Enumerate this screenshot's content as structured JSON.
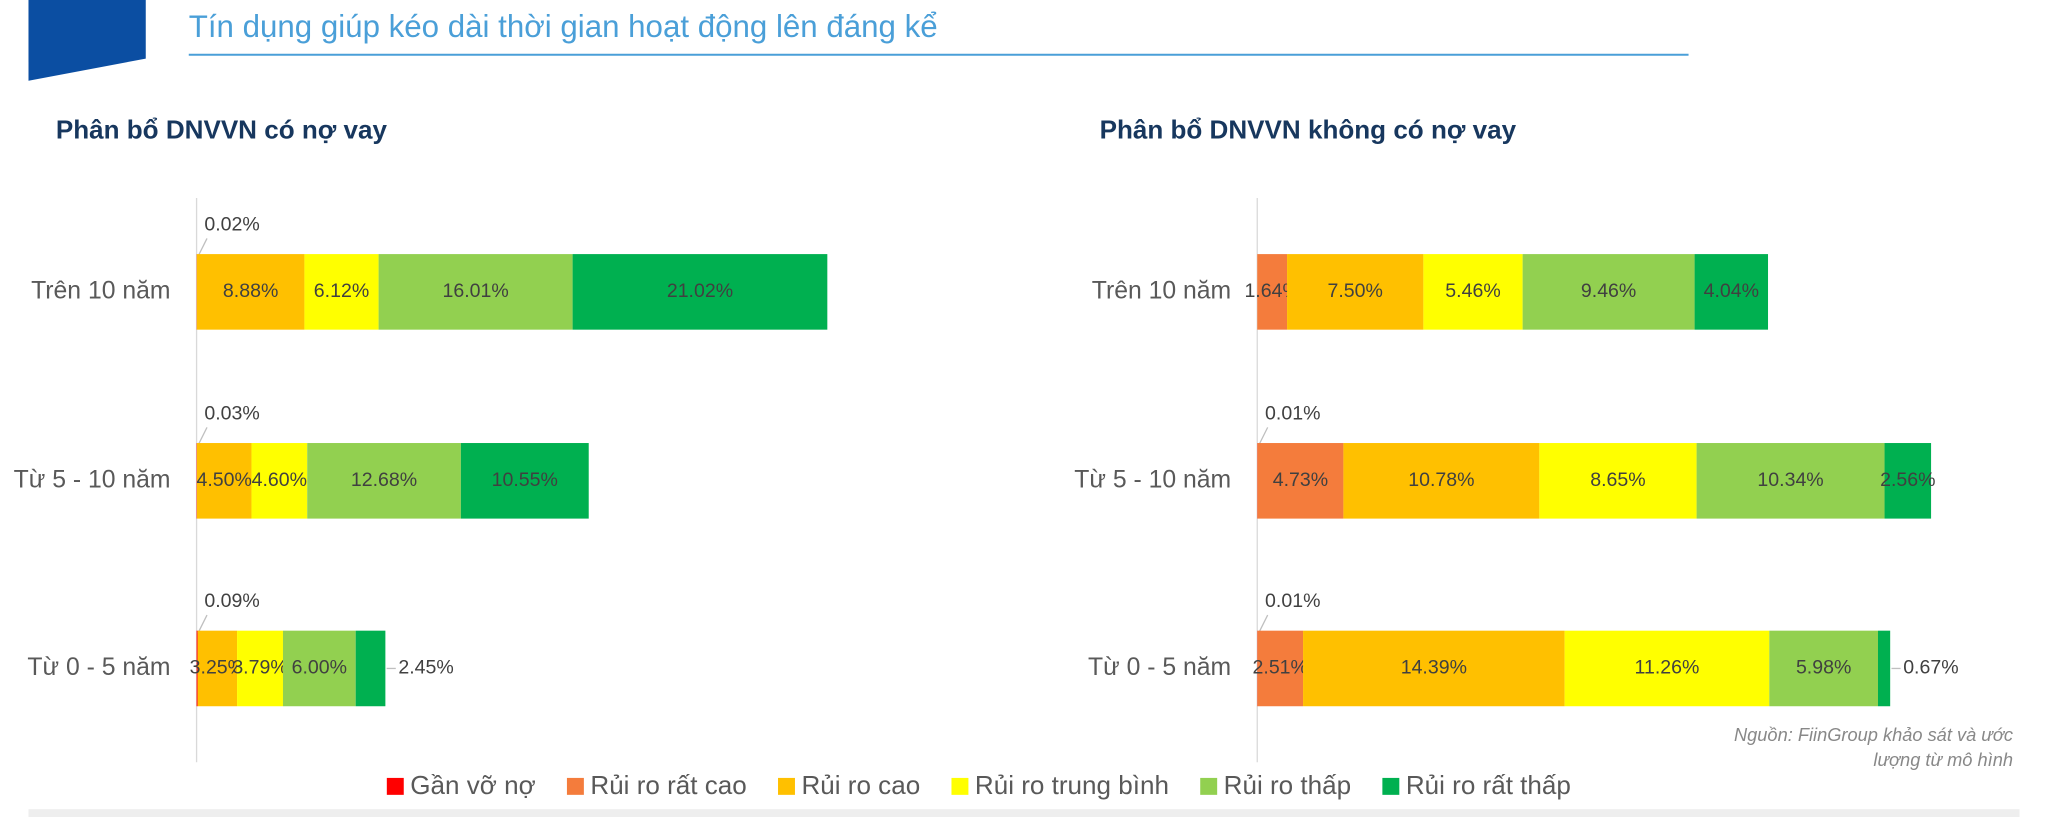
{
  "header": {
    "subtitle": "Tín dụng giúp kéo dài thời gian hoạt động lên đáng kể"
  },
  "source": [
    "Nguồn: FiinGroup khảo sát và ước",
    "lượng từ mô hình"
  ],
  "chart_data": [
    {
      "type": "stacked-bar-horizontal",
      "title": "Phân bổ DNVVN có nợ vay",
      "categories": [
        "Trên 10 năm",
        "Từ 5 - 10 năm",
        "Từ 0 - 5 năm"
      ],
      "xlim": [
        0,
        60
      ],
      "series": [
        {
          "name": "Gần vỡ nợ",
          "color": "#ff0000",
          "values": [
            0.02,
            0.03,
            0.09
          ],
          "value_labels": [
            "0.02%",
            "0.03%",
            "0.09%"
          ]
        },
        {
          "name": "Rủi ro rất cao",
          "color": "#f47c3c",
          "values": [
            0,
            0,
            0
          ],
          "value_labels": [
            null,
            null,
            null
          ]
        },
        {
          "name": "Rủi ro cao",
          "color": "#ffc000",
          "values": [
            8.88,
            4.5,
            3.25
          ],
          "value_labels": [
            "8.88%",
            "4.50%",
            "3.25%"
          ]
        },
        {
          "name": "Rủi ro trung bình",
          "color": "#ffff00",
          "values": [
            6.12,
            4.6,
            3.79
          ],
          "value_labels": [
            "6.12%",
            "4.60%",
            "3.79%"
          ]
        },
        {
          "name": "Rủi ro thấp",
          "color": "#92d050",
          "values": [
            16.01,
            12.68,
            6.0
          ],
          "value_labels": [
            "16.01%",
            "12.68%",
            "6.00%"
          ]
        },
        {
          "name": "Rủi ro rất thấp",
          "color": "#00b050",
          "values": [
            21.02,
            10.55,
            2.45
          ],
          "value_labels": [
            "21.02%",
            "10.55%",
            "2.45%"
          ]
        }
      ]
    },
    {
      "type": "stacked-bar-horizontal",
      "title": "Phân bổ DNVVN không có nợ vay",
      "categories": [
        "Trên 10 năm",
        "Từ 5 - 10 năm",
        "Từ 0 - 5 năm"
      ],
      "xlim": [
        0,
        40
      ],
      "series": [
        {
          "name": "Gần vỡ nợ",
          "color": "#ff0000",
          "values": [
            0,
            0.01,
            0.01
          ],
          "value_labels": [
            null,
            "0.01%",
            "0.01%"
          ]
        },
        {
          "name": "Rủi ro rất cao",
          "color": "#f47c3c",
          "values": [
            1.64,
            4.73,
            2.51
          ],
          "value_labels": [
            "1.64%",
            "4.73%",
            "2.51%"
          ]
        },
        {
          "name": "Rủi ro cao",
          "color": "#ffc000",
          "values": [
            7.5,
            10.78,
            14.39
          ],
          "value_labels": [
            "7.50%",
            "10.78%",
            "14.39%"
          ]
        },
        {
          "name": "Rủi ro trung bình",
          "color": "#ffff00",
          "values": [
            5.46,
            8.65,
            11.26
          ],
          "value_labels": [
            "5.46%",
            "8.65%",
            "11.26%"
          ]
        },
        {
          "name": "Rủi ro thấp",
          "color": "#92d050",
          "values": [
            9.46,
            10.34,
            5.98
          ],
          "value_labels": [
            "9.46%",
            "10.34%",
            "5.98%"
          ]
        },
        {
          "name": "Rủi ro rất thấp",
          "color": "#00b050",
          "values": [
            4.04,
            2.56,
            0.67
          ],
          "value_labels": [
            "4.04%",
            "2.56%",
            "0.67%"
          ]
        }
      ]
    }
  ]
}
